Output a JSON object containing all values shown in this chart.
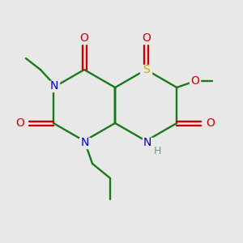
{
  "bg_color": "#e8e8e8",
  "atom_colors": {
    "C": "#1a7a1a",
    "N": "#0000cc",
    "O": "#cc0000",
    "S": "#ccaa00",
    "H": "#5a9a9a"
  },
  "bond_color": "#1a7a1a",
  "fig_size": [
    3.0,
    3.0
  ],
  "dpi": 100
}
